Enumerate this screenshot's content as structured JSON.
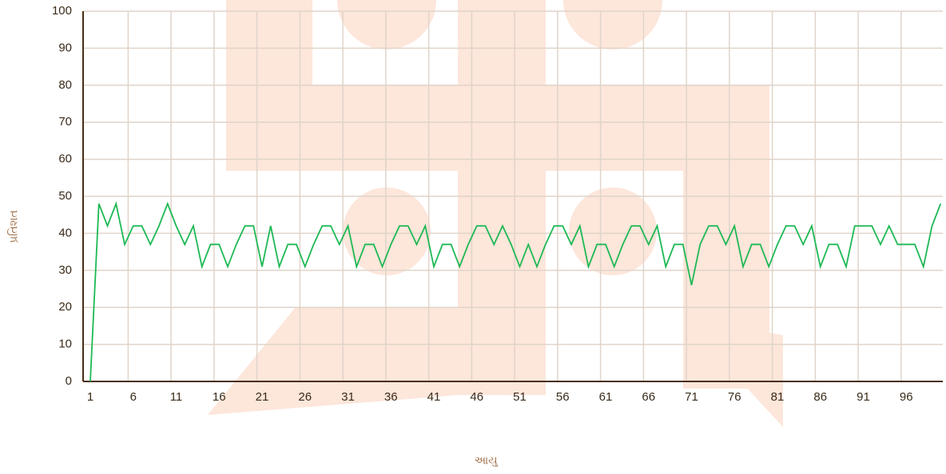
{
  "chart_data": {
    "type": "line",
    "x_label": "આયુ",
    "y_label": "પ્રતિશત",
    "categories": [
      "1",
      null,
      null,
      null,
      null,
      "6",
      null,
      null,
      null,
      null,
      "11",
      null,
      null,
      null,
      null,
      "16",
      null,
      null,
      null,
      null,
      "21",
      null,
      null,
      null,
      null,
      "26",
      null,
      null,
      null,
      null,
      "31",
      null,
      null,
      null,
      null,
      "36",
      null,
      null,
      null,
      null,
      "41",
      null,
      null,
      null,
      null,
      "46",
      null,
      null,
      null,
      null,
      "51",
      null,
      null,
      null,
      null,
      "56",
      null,
      null,
      null,
      null,
      "61",
      null,
      null,
      null,
      null,
      "66",
      null,
      null,
      null,
      null,
      "71",
      null,
      null,
      null,
      null,
      "76",
      null,
      null,
      null,
      null,
      "81",
      null,
      null,
      null,
      null,
      "86",
      null,
      null,
      null,
      null,
      "91",
      null,
      null,
      null,
      null,
      "96",
      null,
      null,
      null,
      null
    ],
    "series": [
      {
        "color": "#1db954",
        "values": [
          0,
          48,
          42,
          48,
          37,
          42,
          42,
          37,
          42,
          48,
          42,
          37,
          42,
          31,
          37,
          37,
          31,
          37,
          42,
          42,
          31,
          42,
          31,
          37,
          37,
          31,
          37,
          42,
          42,
          37,
          42,
          31,
          37,
          37,
          31,
          37,
          42,
          42,
          37,
          42,
          31,
          37,
          37,
          31,
          37,
          42,
          42,
          37,
          42,
          37,
          31,
          37,
          31,
          37,
          42,
          42,
          37,
          42,
          31,
          37,
          37,
          31,
          37,
          42,
          42,
          37,
          42,
          31,
          37,
          37,
          26,
          37,
          42,
          42,
          37,
          42,
          31,
          37,
          37,
          31,
          37,
          42,
          42,
          37,
          42,
          31,
          37,
          37,
          31,
          42,
          42,
          42,
          37,
          42,
          37,
          37,
          37,
          31,
          42,
          48
        ]
      }
    ],
    "ylim": [
      0,
      100
    ],
    "yticks": [
      0,
      10,
      20,
      30,
      40,
      50,
      60,
      70,
      80,
      90,
      100
    ],
    "grid": true
  }
}
